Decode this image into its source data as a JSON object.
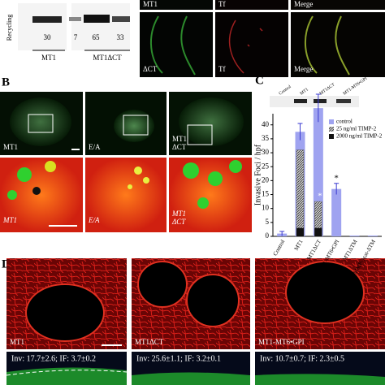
{
  "panel_a": {
    "blot_label": "Recycling",
    "numbers": [
      "30",
      "7",
      "65",
      "33"
    ],
    "groups": [
      "MT1",
      "MT1ΔCT"
    ],
    "top_labels": [
      "MT1",
      "Tf",
      "Merge"
    ],
    "bottom_labels": [
      "ΔCT",
      "Tf",
      "Merge"
    ]
  },
  "panel_b": {
    "letter": "B",
    "row1_labels": [
      "MT1",
      "E/A",
      "MT1"
    ],
    "row1_extra": "ΔCT",
    "row2_labels": [
      "MT1",
      "E/A",
      "MT1"
    ],
    "row2_extra": "ΔCT"
  },
  "panel_c_letter": "C",
  "blot_lanes": [
    "Control",
    "MT1",
    "MT1ΔCT",
    "MT1-MT6•GPI"
  ],
  "chart_data": {
    "type": "bar",
    "ylabel": "Invasive Foci / hpf",
    "categories": [
      "Control",
      "MT1",
      "MT1ΔCT",
      "MT1-MT6•GPI",
      "MT1ΔTM",
      "MT1-MMP-1cat-ΔTM"
    ],
    "series": [
      {
        "name": "control",
        "color": "#9fa3f0",
        "values": [
          1,
          37.5,
          46,
          17,
          0.3,
          0.3
        ],
        "errors": [
          0.8,
          3,
          5,
          2,
          null,
          null
        ]
      },
      {
        "name": "25 ng/ml TIMP-2",
        "color": "#777777",
        "hatched": true,
        "values": [
          null,
          31,
          12.5,
          null,
          null,
          null
        ]
      },
      {
        "name": "2000 ng/ml TIMP-2",
        "color": "#111111",
        "values": [
          null,
          3,
          3,
          null,
          null,
          null
        ]
      }
    ],
    "annotations": [
      "*",
      "*"
    ],
    "ylim": [
      0,
      44
    ],
    "yticks": [
      0,
      5,
      10,
      15,
      20,
      25,
      30,
      35,
      40
    ]
  },
  "panel_d": {
    "letter": "D",
    "labels": [
      "MT1",
      "MT1ΔCT",
      "MT1-MT6•GPI"
    ],
    "stats": [
      "Inv: 17.7±2.6; IF: 3.7±0.2",
      "Inv: 25.6±1.1; IF: 3.2±0.1",
      "Inv: 10.7±0.7; IF: 2.3±0.5"
    ]
  }
}
